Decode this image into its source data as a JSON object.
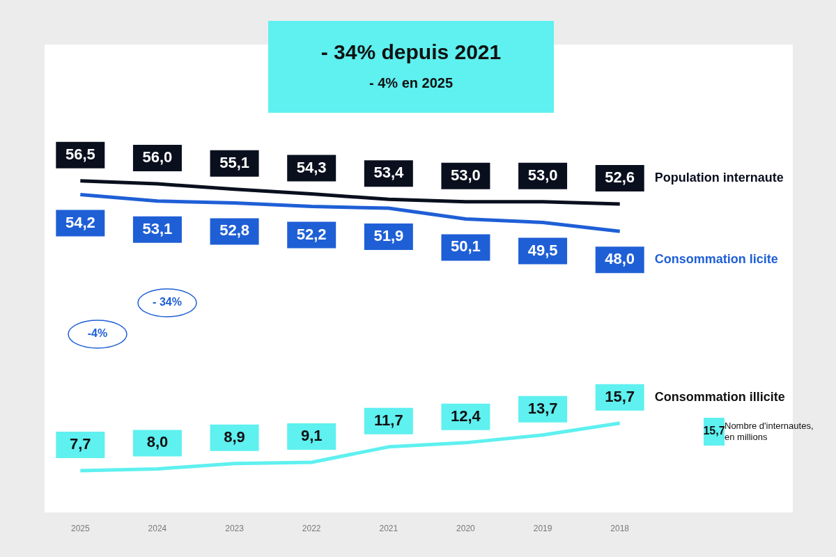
{
  "chart_data": {
    "type": "line",
    "title": "- 34% depuis 2021",
    "subtitle": "- 4% en 2025",
    "categories": [
      "2025",
      "2024",
      "2023",
      "2022",
      "2021",
      "2020",
      "2019",
      "2018"
    ],
    "series": [
      {
        "name": "Population internaute",
        "color": "#0a0f1e",
        "values": [
          56.5,
          56.0,
          55.1,
          54.3,
          53.4,
          53.0,
          53.0,
          52.6
        ],
        "value_labels": [
          "56,5",
          "56,0",
          "55,1",
          "54,3",
          "53,4",
          "53,0",
          "53,0",
          "52,6"
        ]
      },
      {
        "name": "Consommation licite",
        "color": "#1f5fd6",
        "values": [
          54.2,
          53.1,
          52.8,
          52.2,
          51.9,
          50.1,
          49.5,
          48.0
        ],
        "value_labels": [
          "54,2",
          "53,1",
          "52,8",
          "52,2",
          "51,9",
          "50,1",
          "49,5",
          "48,0"
        ]
      },
      {
        "name": "Consommation illicite",
        "color": "#5ff0f0",
        "values": [
          7.7,
          8.0,
          8.9,
          9.1,
          11.7,
          12.4,
          13.7,
          15.7
        ],
        "value_labels": [
          "7,7",
          "8,0",
          "8,9",
          "9,1",
          "11,7",
          "12,4",
          "13,7",
          "15,7"
        ]
      }
    ],
    "annotations": [
      "- 34%",
      "-4%",
      "15,7",
      "Nombre d'internautes, en millions"
    ],
    "grid": false,
    "legend": "right",
    "marker": "none",
    "line_style": "solid",
    "tick_labels": "x"
  }
}
